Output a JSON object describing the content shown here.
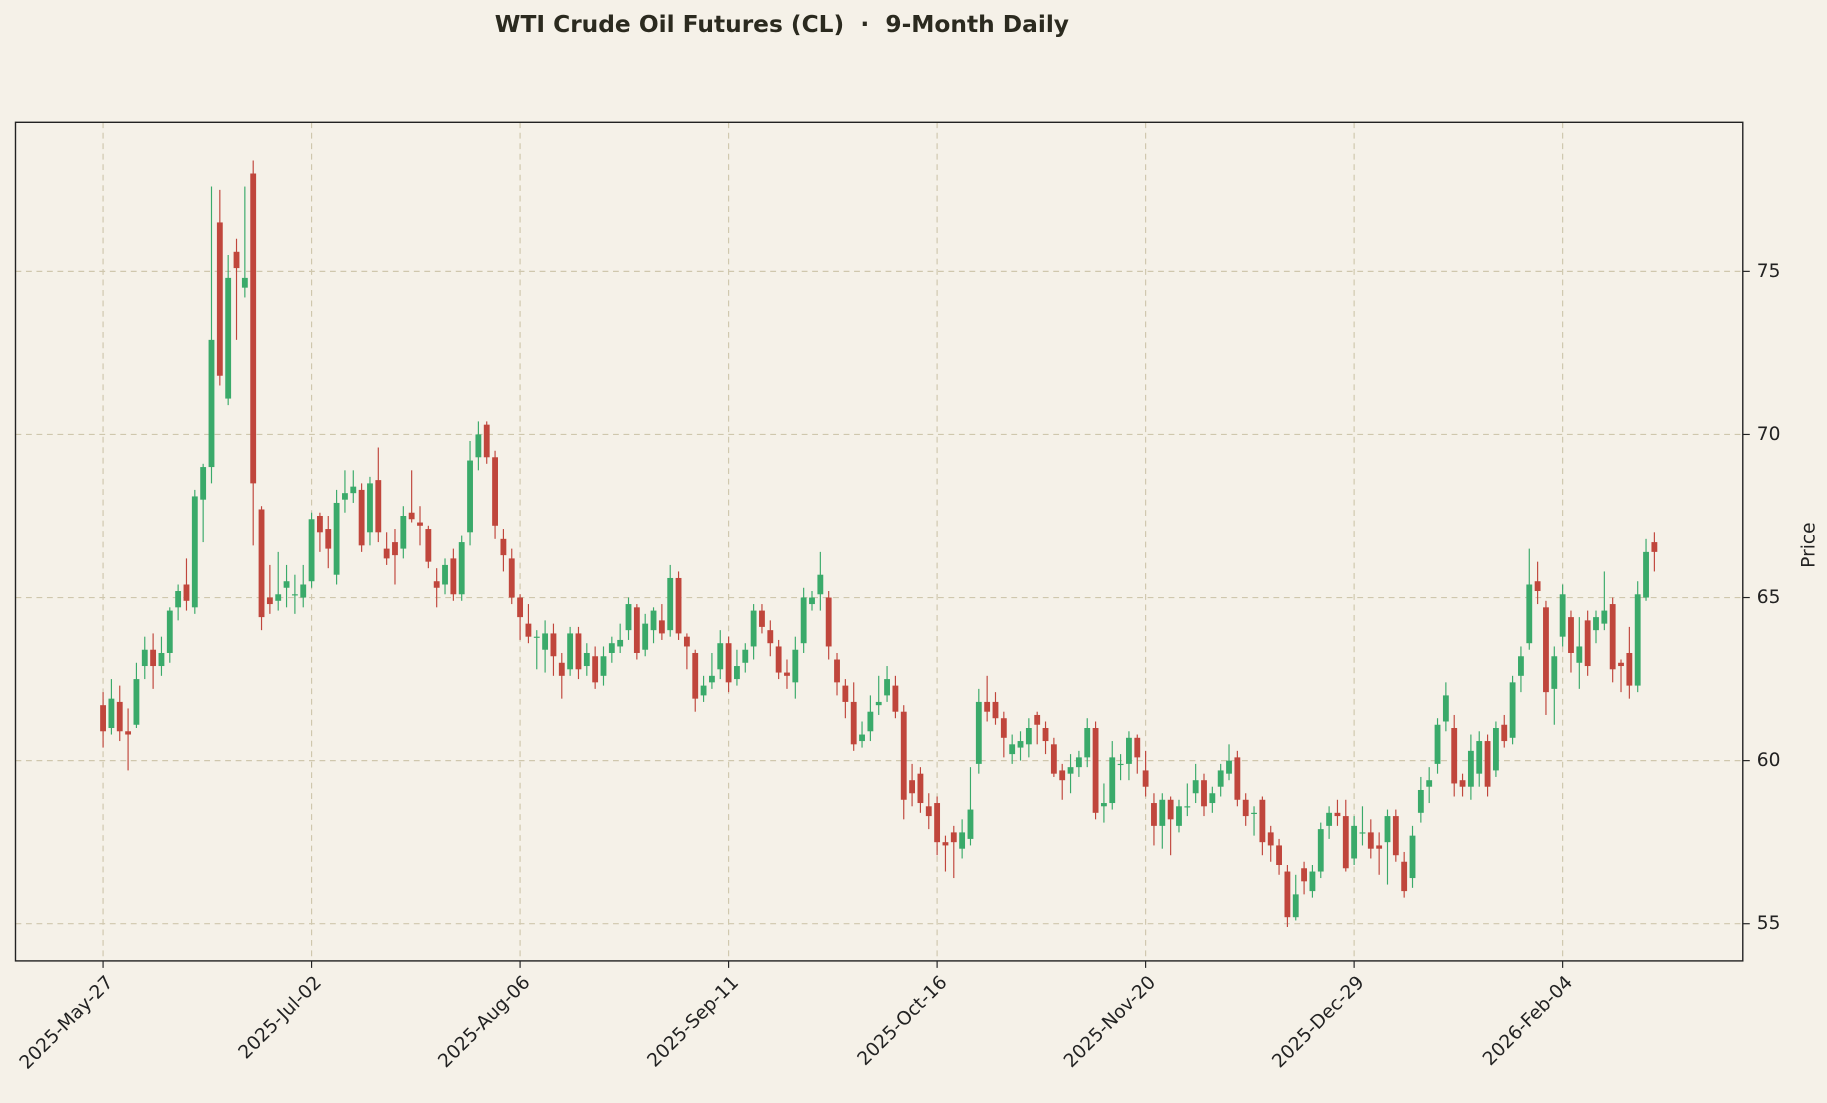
{
  "chart_data": {
    "type": "candlestick",
    "title": "WTI Crude Oil Futures (CL)  ·  9-Month Daily",
    "y_label": "Price",
    "up_color": "#3aaa6a",
    "down_color": "#c0463c",
    "grid": true,
    "y_axis_side": "right",
    "ylim": [
      53.86,
      79.57
    ],
    "yticks": [
      55,
      60,
      65,
      70,
      75
    ],
    "xticks": [
      "2025-May-27",
      "2025-Jul-02",
      "2025-Aug-06",
      "2025-Sep-11",
      "2025-Oct-16",
      "2025-Nov-20",
      "2025-Dec-29",
      "2026-Feb-04"
    ],
    "categories": [
      "2025-May-27",
      "2025-May-28",
      "2025-May-29",
      "2025-May-30",
      "2025-Jun-02",
      "2025-Jun-03",
      "2025-Jun-04",
      "2025-Jun-05",
      "2025-Jun-06",
      "2025-Jun-09",
      "2025-Jun-10",
      "2025-Jun-11",
      "2025-Jun-12",
      "2025-Jun-13",
      "2025-Jun-16",
      "2025-Jun-17",
      "2025-Jun-18",
      "2025-Jun-20",
      "2025-Jun-23",
      "2025-Jun-24",
      "2025-Jun-25",
      "2025-Jun-26",
      "2025-Jun-27",
      "2025-Jun-30",
      "2025-Jul-01",
      "2025-Jul-02",
      "2025-Jul-03",
      "2025-Jul-04",
      "2025-Jul-07",
      "2025-Jul-08",
      "2025-Jul-09",
      "2025-Jul-10",
      "2025-Jul-11",
      "2025-Jul-14",
      "2025-Jul-15",
      "2025-Jul-16",
      "2025-Jul-17",
      "2025-Jul-18",
      "2025-Jul-21",
      "2025-Jul-22",
      "2025-Jul-23",
      "2025-Jul-24",
      "2025-Jul-25",
      "2025-Jul-28",
      "2025-Jul-29",
      "2025-Jul-30",
      "2025-Jul-31",
      "2025-Aug-01",
      "2025-Aug-04",
      "2025-Aug-05",
      "2025-Aug-06",
      "2025-Aug-07",
      "2025-Aug-08",
      "2025-Aug-11",
      "2025-Aug-12",
      "2025-Aug-13",
      "2025-Aug-14",
      "2025-Aug-15",
      "2025-Aug-18",
      "2025-Aug-19",
      "2025-Aug-20",
      "2025-Aug-21",
      "2025-Aug-22",
      "2025-Aug-25",
      "2025-Aug-26",
      "2025-Aug-27",
      "2025-Aug-28",
      "2025-Aug-29",
      "2025-Sep-02",
      "2025-Sep-03",
      "2025-Sep-04",
      "2025-Sep-05",
      "2025-Sep-08",
      "2025-Sep-09",
      "2025-Sep-10",
      "2025-Sep-11",
      "2025-Sep-12",
      "2025-Sep-15",
      "2025-Sep-16",
      "2025-Sep-17",
      "2025-Sep-18",
      "2025-Sep-19",
      "2025-Sep-22",
      "2025-Sep-23",
      "2025-Sep-24",
      "2025-Sep-25",
      "2025-Sep-26",
      "2025-Sep-29",
      "2025-Sep-30",
      "2025-Oct-01",
      "2025-Oct-02",
      "2025-Oct-03",
      "2025-Oct-06",
      "2025-Oct-07",
      "2025-Oct-08",
      "2025-Oct-09",
      "2025-Oct-10",
      "2025-Oct-13",
      "2025-Oct-14",
      "2025-Oct-15",
      "2025-Oct-16",
      "2025-Oct-17",
      "2025-Oct-20",
      "2025-Oct-21",
      "2025-Oct-22",
      "2025-Oct-23",
      "2025-Oct-24",
      "2025-Oct-27",
      "2025-Oct-28",
      "2025-Oct-29",
      "2025-Oct-30",
      "2025-Oct-31",
      "2025-Nov-03",
      "2025-Nov-04",
      "2025-Nov-05",
      "2025-Nov-06",
      "2025-Nov-07",
      "2025-Nov-10",
      "2025-Nov-11",
      "2025-Nov-12",
      "2025-Nov-13",
      "2025-Nov-14",
      "2025-Nov-17",
      "2025-Nov-18",
      "2025-Nov-19",
      "2025-Nov-20",
      "2025-Nov-21",
      "2025-Nov-24",
      "2025-Nov-25",
      "2025-Nov-26",
      "2025-Nov-28",
      "2025-Dec-01",
      "2025-Dec-02",
      "2025-Dec-03",
      "2025-Dec-04",
      "2025-Dec-05",
      "2025-Dec-08",
      "2025-Dec-09",
      "2025-Dec-10",
      "2025-Dec-11",
      "2025-Dec-12",
      "2025-Dec-15",
      "2025-Dec-16",
      "2025-Dec-17",
      "2025-Dec-18",
      "2025-Dec-19",
      "2025-Dec-22",
      "2025-Dec-23",
      "2025-Dec-24",
      "2025-Dec-26",
      "2025-Dec-29",
      "2025-Dec-30",
      "2025-Dec-31",
      "2026-Jan-02",
      "2026-Jan-05",
      "2026-Jan-06",
      "2026-Jan-07",
      "2026-Jan-08",
      "2026-Jan-09",
      "2026-Jan-12",
      "2026-Jan-13",
      "2026-Jan-14",
      "2026-Jan-15",
      "2026-Jan-16",
      "2026-Jan-20",
      "2026-Jan-21",
      "2026-Jan-22",
      "2026-Jan-23",
      "2026-Jan-26",
      "2026-Jan-27",
      "2026-Jan-28",
      "2026-Jan-29",
      "2026-Jan-30",
      "2026-Feb-02",
      "2026-Feb-03",
      "2026-Feb-04",
      "2026-Feb-05",
      "2026-Feb-06",
      "2026-Feb-09",
      "2026-Feb-10",
      "2026-Feb-11",
      "2026-Feb-12",
      "2026-Feb-13",
      "2026-Feb-17",
      "2026-Feb-18",
      "2026-Feb-19",
      "2026-Feb-20"
    ],
    "open": [
      61.7,
      61.0,
      61.8,
      60.9,
      61.1,
      62.9,
      63.4,
      62.9,
      63.3,
      64.7,
      65.4,
      64.7,
      68.0,
      69.0,
      76.5,
      71.1,
      75.6,
      74.5,
      78.0,
      67.7,
      65.0,
      64.9,
      65.3,
      65.1,
      65.0,
      65.5,
      67.5,
      67.1,
      65.7,
      68.0,
      68.2,
      68.3,
      67.0,
      68.6,
      66.5,
      66.7,
      66.5,
      67.6,
      67.3,
      67.1,
      65.5,
      65.4,
      66.2,
      65.1,
      67.0,
      69.3,
      70.3,
      69.3,
      66.8,
      66.2,
      65.0,
      64.2,
      63.8,
      63.4,
      63.9,
      63.0,
      62.8,
      63.9,
      62.9,
      63.2,
      62.6,
      63.3,
      63.5,
      64.0,
      64.7,
      63.4,
      64.0,
      64.3,
      64.0,
      65.6,
      63.8,
      63.3,
      62.0,
      62.4,
      62.8,
      63.6,
      62.5,
      63.0,
      63.5,
      64.6,
      64.0,
      63.5,
      62.7,
      62.4,
      63.6,
      64.8,
      65.1,
      65.0,
      63.1,
      62.3,
      61.8,
      60.6,
      60.9,
      61.7,
      62.0,
      62.3,
      61.5,
      59.4,
      59.6,
      58.6,
      58.7,
      57.5,
      57.8,
      57.3,
      57.6,
      59.9,
      61.8,
      61.8,
      61.3,
      60.2,
      60.4,
      60.5,
      61.4,
      61.0,
      60.5,
      59.7,
      59.6,
      59.8,
      60.1,
      61.0,
      58.6,
      58.7,
      59.9,
      59.9,
      60.7,
      59.7,
      58.7,
      58.0,
      58.8,
      58.0,
      58.6,
      59.0,
      59.4,
      58.7,
      59.2,
      59.6,
      60.1,
      58.8,
      58.4,
      58.8,
      57.8,
      57.4,
      56.6,
      55.2,
      56.7,
      56.0,
      56.6,
      58.0,
      58.4,
      58.3,
      57.0,
      57.8,
      57.8,
      57.4,
      57.5,
      58.3,
      56.9,
      56.4,
      58.4,
      59.2,
      59.9,
      61.2,
      61.0,
      59.4,
      59.2,
      59.6,
      60.6,
      59.7,
      61.1,
      60.7,
      62.6,
      63.6,
      65.5,
      64.7,
      62.2,
      63.8,
      64.4,
      63.0,
      64.3,
      64.0,
      64.2,
      64.8,
      63.0,
      63.3,
      62.3,
      65.0,
      66.7
    ],
    "high": [
      62.1,
      62.5,
      62.3,
      61.6,
      63.0,
      63.8,
      63.9,
      63.8,
      64.7,
      65.4,
      66.2,
      68.3,
      69.1,
      77.6,
      77.5,
      75.5,
      76.0,
      77.6,
      78.4,
      67.8,
      66.0,
      66.4,
      66.0,
      65.7,
      66.0,
      67.6,
      67.6,
      67.5,
      68.3,
      68.9,
      68.9,
      68.5,
      68.7,
      69.6,
      67.0,
      67.1,
      67.8,
      68.9,
      67.8,
      67.2,
      65.9,
      66.2,
      66.5,
      66.9,
      69.8,
      70.4,
      70.4,
      69.5,
      67.1,
      66.5,
      65.1,
      64.8,
      64.0,
      64.3,
      64.2,
      63.3,
      64.1,
      64.1,
      63.6,
      63.5,
      63.5,
      63.8,
      64.2,
      65.0,
      64.8,
      64.5,
      64.7,
      64.8,
      66.0,
      65.8,
      63.9,
      63.4,
      62.6,
      63.3,
      64.0,
      63.8,
      63.4,
      63.6,
      64.8,
      64.8,
      64.3,
      63.7,
      63.1,
      63.8,
      65.3,
      65.2,
      66.4,
      65.2,
      63.3,
      62.5,
      62.4,
      61.2,
      62.0,
      62.6,
      62.9,
      62.6,
      61.7,
      59.9,
      59.8,
      59.0,
      58.9,
      57.7,
      58.0,
      58.2,
      59.8,
      62.2,
      62.6,
      62.1,
      61.5,
      60.8,
      60.9,
      61.3,
      61.5,
      61.2,
      60.7,
      59.9,
      60.2,
      60.3,
      61.3,
      61.2,
      59.3,
      60.6,
      60.2,
      60.9,
      60.8,
      60.3,
      59.0,
      59.0,
      58.9,
      58.8,
      59.3,
      59.9,
      59.6,
      59.2,
      59.9,
      60.5,
      60.3,
      59.0,
      58.6,
      58.9,
      58.0,
      57.6,
      56.8,
      56.5,
      56.9,
      56.8,
      58.1,
      58.6,
      58.8,
      58.8,
      58.3,
      58.6,
      58.2,
      57.8,
      58.5,
      58.5,
      57.2,
      58.0,
      59.5,
      59.8,
      61.3,
      62.4,
      61.4,
      59.6,
      60.8,
      60.9,
      60.8,
      61.2,
      61.4,
      62.6,
      63.5,
      66.5,
      66.1,
      64.9,
      63.5,
      65.4,
      64.6,
      64.4,
      64.6,
      64.6,
      65.8,
      65.0,
      63.1,
      64.1,
      65.5,
      66.8,
      67.0
    ],
    "low": [
      60.4,
      60.8,
      60.6,
      59.7,
      61.0,
      62.5,
      62.2,
      62.6,
      63.0,
      64.3,
      64.6,
      64.5,
      66.7,
      68.5,
      71.5,
      70.9,
      72.9,
      74.2,
      66.6,
      64.0,
      64.5,
      64.6,
      64.7,
      64.5,
      64.7,
      65.3,
      66.4,
      65.9,
      65.4,
      67.6,
      67.9,
      66.4,
      66.6,
      66.7,
      66.0,
      65.4,
      66.2,
      67.3,
      66.6,
      65.9,
      64.7,
      65.1,
      64.9,
      64.9,
      66.6,
      68.9,
      69.1,
      66.8,
      65.8,
      64.8,
      63.7,
      63.6,
      62.8,
      62.7,
      62.6,
      61.9,
      62.6,
      62.5,
      62.6,
      62.2,
      62.3,
      63.0,
      63.3,
      63.7,
      63.1,
      63.2,
      63.6,
      63.7,
      63.8,
      63.7,
      62.8,
      61.5,
      61.8,
      62.2,
      62.5,
      62.1,
      62.3,
      62.7,
      63.1,
      63.9,
      63.2,
      62.5,
      62.2,
      61.9,
      63.3,
      64.6,
      64.6,
      63.1,
      62.0,
      61.3,
      60.3,
      60.4,
      60.6,
      61.4,
      61.8,
      61.3,
      58.2,
      58.6,
      58.4,
      57.9,
      57.1,
      56.6,
      56.4,
      57.0,
      57.4,
      59.6,
      61.2,
      61.1,
      60.1,
      59.9,
      60.0,
      60.1,
      60.5,
      60.2,
      59.5,
      58.8,
      59.0,
      59.5,
      59.8,
      58.2,
      58.1,
      58.5,
      59.4,
      59.4,
      59.6,
      58.9,
      57.4,
      57.3,
      57.1,
      57.8,
      58.3,
      58.7,
      58.3,
      58.4,
      58.9,
      59.4,
      58.6,
      58.0,
      57.7,
      57.1,
      56.9,
      56.5,
      54.9,
      55.1,
      55.9,
      55.8,
      56.4,
      57.6,
      58.0,
      56.6,
      56.8,
      57.4,
      57.0,
      56.5,
      56.2,
      56.9,
      55.8,
      56.1,
      58.1,
      58.7,
      59.6,
      60.9,
      58.9,
      58.9,
      58.8,
      59.2,
      58.9,
      59.5,
      60.4,
      60.5,
      62.1,
      63.4,
      64.8,
      61.4,
      61.1,
      63.5,
      62.7,
      62.2,
      62.6,
      63.6,
      64.0,
      62.4,
      62.1,
      61.9,
      62.1,
      64.9,
      65.8
    ],
    "close": [
      60.9,
      61.9,
      60.9,
      60.8,
      62.5,
      63.4,
      62.9,
      63.3,
      64.6,
      65.2,
      64.9,
      68.1,
      69.0,
      72.9,
      71.8,
      74.8,
      75.1,
      74.8,
      68.5,
      64.4,
      64.8,
      65.1,
      65.5,
      65.1,
      65.4,
      67.4,
      67.0,
      66.5,
      67.9,
      68.2,
      68.4,
      66.6,
      68.5,
      67.0,
      66.2,
      66.3,
      67.5,
      67.4,
      67.2,
      66.1,
      65.3,
      66.0,
      65.1,
      66.7,
      69.2,
      70.0,
      69.3,
      67.2,
      66.3,
      65.0,
      64.4,
      63.8,
      63.8,
      63.9,
      63.2,
      62.6,
      63.9,
      62.8,
      63.3,
      62.4,
      63.2,
      63.6,
      63.7,
      64.8,
      63.3,
      64.2,
      64.6,
      63.9,
      65.6,
      63.9,
      63.5,
      61.9,
      62.3,
      62.6,
      63.6,
      62.4,
      62.9,
      63.4,
      64.6,
      64.1,
      63.6,
      62.7,
      62.6,
      63.4,
      65.0,
      65.0,
      65.7,
      63.5,
      62.4,
      61.8,
      60.5,
      60.8,
      61.5,
      61.8,
      62.5,
      61.5,
      58.8,
      59.0,
      58.7,
      58.3,
      57.5,
      57.4,
      57.5,
      57.8,
      58.5,
      61.8,
      61.5,
      61.3,
      60.7,
      60.5,
      60.6,
      61.0,
      61.1,
      60.6,
      59.6,
      59.4,
      59.8,
      60.1,
      61.0,
      58.4,
      58.7,
      60.1,
      59.9,
      60.7,
      60.1,
      59.2,
      58.0,
      58.8,
      58.2,
      58.6,
      58.6,
      59.4,
      58.6,
      59.0,
      59.7,
      60.0,
      58.8,
      58.3,
      58.4,
      57.5,
      57.4,
      56.8,
      55.2,
      55.9,
      56.3,
      56.6,
      57.9,
      58.4,
      58.3,
      56.7,
      58.0,
      57.8,
      57.3,
      57.3,
      58.3,
      57.1,
      56.0,
      57.7,
      59.1,
      59.4,
      61.1,
      62.0,
      59.3,
      59.2,
      60.3,
      60.6,
      59.2,
      61.0,
      60.6,
      62.4,
      63.2,
      65.4,
      65.2,
      62.1,
      63.2,
      65.1,
      63.3,
      63.5,
      62.9,
      64.4,
      64.6,
      62.8,
      62.9,
      62.3,
      65.1,
      66.4,
      66.4
    ]
  }
}
